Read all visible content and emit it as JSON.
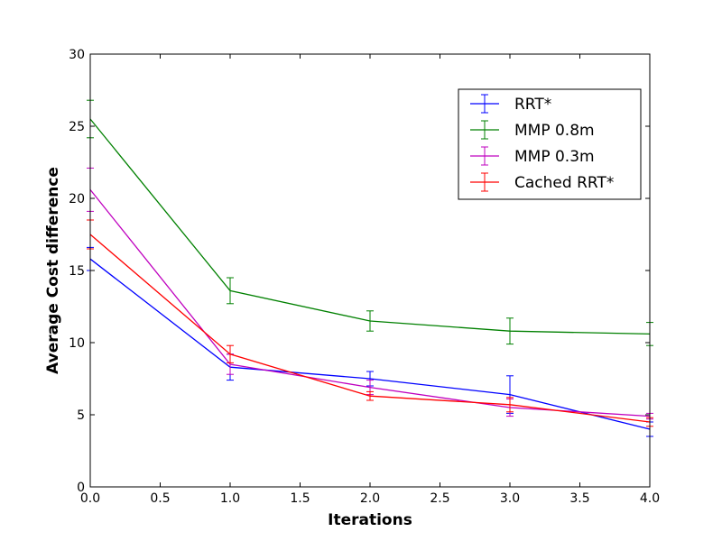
{
  "chart_data": {
    "type": "line",
    "title": "",
    "xlabel": "Iterations",
    "ylabel": "Average Cost difference",
    "xlim": [
      0,
      4
    ],
    "ylim": [
      0,
      30
    ],
    "xticks": [
      "0.0",
      "0.5",
      "1.0",
      "1.5",
      "2.0",
      "2.5",
      "3.0",
      "3.5",
      "4.0"
    ],
    "yticks": [
      "0",
      "5",
      "10",
      "15",
      "20",
      "25",
      "30"
    ],
    "grid": false,
    "legend_position": "top-right",
    "x": [
      0,
      1,
      2,
      3,
      4
    ],
    "series": [
      {
        "name": "RRT*",
        "color": "#0000ff",
        "values": [
          15.8,
          8.3,
          7.5,
          6.4,
          4.0
        ],
        "errors": [
          0.8,
          0.9,
          0.5,
          1.3,
          0.5
        ]
      },
      {
        "name": "MMP 0.8m",
        "color": "#008000",
        "values": [
          25.5,
          13.6,
          11.5,
          10.8,
          10.6
        ],
        "errors": [
          1.3,
          0.9,
          0.7,
          0.9,
          0.8
        ]
      },
      {
        "name": "MMP 0.3m",
        "color": "#bf00bf",
        "values": [
          20.6,
          8.5,
          6.9,
          5.5,
          4.9
        ],
        "errors": [
          1.5,
          0.7,
          0.5,
          0.6,
          0.2
        ]
      },
      {
        "name": "Cached RRT*",
        "color": "#ff0000",
        "values": [
          17.5,
          9.2,
          6.3,
          5.7,
          4.5
        ],
        "errors": [
          1.0,
          0.6,
          0.3,
          0.5,
          0.3
        ]
      }
    ]
  }
}
